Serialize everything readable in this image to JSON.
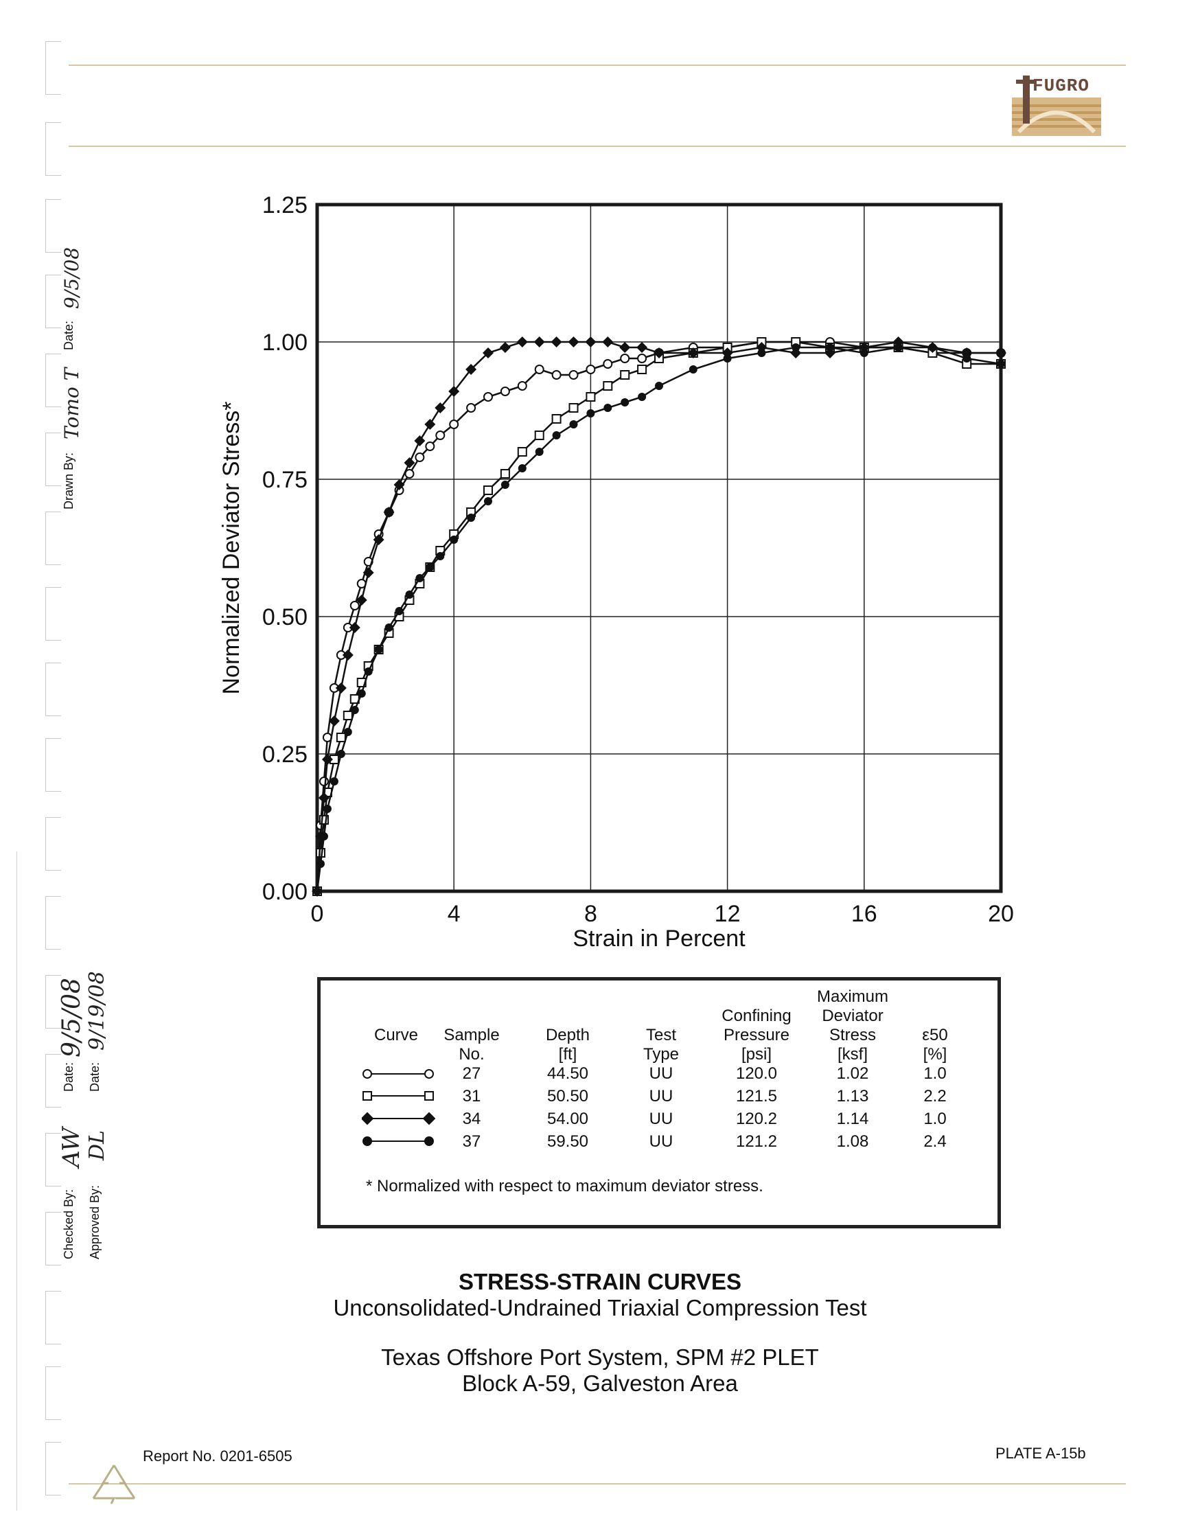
{
  "header": {
    "logo_text": "FUGRO"
  },
  "sidebar": {
    "drawn_by_label": "Drawn By:",
    "drawn_by_value": "Tomo T",
    "drawn_date_label": "Date:",
    "drawn_date_value": "9/5/08",
    "checked_by_label": "Checked By:",
    "checked_by_value": "AW",
    "checked_date_label": "Date:",
    "checked_date_value": "9/5/08",
    "approved_by_label": "Approved By:",
    "approved_by_value": "DL",
    "approved_date_label": "Date:",
    "approved_date_value": "9/19/08"
  },
  "chart_data": {
    "type": "line",
    "title": "",
    "xlabel": "Strain in Percent",
    "ylabel": "Normalized Deviator Stress*",
    "xlim": [
      0,
      20
    ],
    "ylim": [
      0,
      1.25
    ],
    "x_ticks": [
      "0",
      "4",
      "8",
      "12",
      "16",
      "20"
    ],
    "y_ticks": [
      "0.00",
      "0.25",
      "0.50",
      "0.75",
      "1.00",
      "1.25"
    ],
    "grid": true,
    "series": [
      {
        "name": "27",
        "marker": "open-circle",
        "x": [
          0,
          0.1,
          0.2,
          0.3,
          0.5,
          0.7,
          0.9,
          1.1,
          1.3,
          1.5,
          1.8,
          2.1,
          2.4,
          2.7,
          3.0,
          3.3,
          3.6,
          4.0,
          4.5,
          5.0,
          5.5,
          6.0,
          6.5,
          7.0,
          7.5,
          8.0,
          8.5,
          9.0,
          9.5,
          10.0,
          11.0,
          12.0,
          13.0,
          14.0,
          15.0,
          16.0,
          17.0,
          18.0,
          19.0,
          20.0
        ],
        "y": [
          0,
          0.12,
          0.2,
          0.28,
          0.37,
          0.43,
          0.48,
          0.52,
          0.56,
          0.6,
          0.65,
          0.69,
          0.73,
          0.76,
          0.79,
          0.81,
          0.83,
          0.85,
          0.88,
          0.9,
          0.91,
          0.92,
          0.95,
          0.94,
          0.94,
          0.95,
          0.96,
          0.97,
          0.97,
          0.98,
          0.99,
          0.99,
          1.0,
          1.0,
          1.0,
          0.99,
          0.99,
          0.98,
          0.98,
          0.98
        ]
      },
      {
        "name": "31",
        "marker": "open-square",
        "x": [
          0,
          0.1,
          0.2,
          0.3,
          0.5,
          0.7,
          0.9,
          1.1,
          1.3,
          1.5,
          1.8,
          2.1,
          2.4,
          2.7,
          3.0,
          3.3,
          3.6,
          4.0,
          4.5,
          5.0,
          5.5,
          6.0,
          6.5,
          7.0,
          7.5,
          8.0,
          8.5,
          9.0,
          9.5,
          10.0,
          11.0,
          12.0,
          13.0,
          14.0,
          15.0,
          16.0,
          17.0,
          18.0,
          19.0,
          20.0
        ],
        "y": [
          0,
          0.07,
          0.13,
          0.18,
          0.24,
          0.28,
          0.32,
          0.35,
          0.38,
          0.41,
          0.44,
          0.47,
          0.5,
          0.53,
          0.56,
          0.59,
          0.62,
          0.65,
          0.69,
          0.73,
          0.76,
          0.8,
          0.83,
          0.86,
          0.88,
          0.9,
          0.92,
          0.94,
          0.95,
          0.97,
          0.98,
          0.99,
          1.0,
          1.0,
          0.99,
          0.99,
          0.99,
          0.98,
          0.96,
          0.96
        ]
      },
      {
        "name": "34",
        "marker": "filled-diamond",
        "x": [
          0,
          0.1,
          0.2,
          0.3,
          0.5,
          0.7,
          0.9,
          1.1,
          1.3,
          1.5,
          1.8,
          2.1,
          2.4,
          2.7,
          3.0,
          3.3,
          3.6,
          4.0,
          4.5,
          5.0,
          5.5,
          6.0,
          6.5,
          7.0,
          7.5,
          8.0,
          8.5,
          9.0,
          9.5,
          10.0,
          11.0,
          12.0,
          13.0,
          14.0,
          15.0,
          16.0,
          17.0,
          18.0,
          19.0,
          20.0
        ],
        "y": [
          0,
          0.1,
          0.17,
          0.24,
          0.31,
          0.37,
          0.43,
          0.48,
          0.53,
          0.58,
          0.64,
          0.69,
          0.74,
          0.78,
          0.82,
          0.85,
          0.88,
          0.91,
          0.95,
          0.98,
          0.99,
          1.0,
          1.0,
          1.0,
          1.0,
          1.0,
          1.0,
          0.99,
          0.99,
          0.98,
          0.98,
          0.98,
          0.99,
          0.98,
          0.98,
          0.99,
          1.0,
          0.99,
          0.98,
          0.98
        ]
      },
      {
        "name": "37",
        "marker": "filled-circle",
        "x": [
          0,
          0.1,
          0.2,
          0.3,
          0.5,
          0.7,
          0.9,
          1.1,
          1.3,
          1.5,
          1.8,
          2.1,
          2.4,
          2.7,
          3.0,
          3.3,
          3.6,
          4.0,
          4.5,
          5.0,
          5.5,
          6.0,
          6.5,
          7.0,
          7.5,
          8.0,
          8.5,
          9.0,
          9.5,
          10.0,
          11.0,
          12.0,
          13.0,
          14.0,
          15.0,
          16.0,
          17.0,
          18.0,
          19.0,
          20.0
        ],
        "y": [
          0,
          0.05,
          0.1,
          0.15,
          0.2,
          0.25,
          0.29,
          0.33,
          0.36,
          0.4,
          0.44,
          0.48,
          0.51,
          0.54,
          0.57,
          0.59,
          0.61,
          0.64,
          0.68,
          0.71,
          0.74,
          0.77,
          0.8,
          0.83,
          0.85,
          0.87,
          0.88,
          0.89,
          0.9,
          0.92,
          0.95,
          0.97,
          0.98,
          0.99,
          0.99,
          0.98,
          0.99,
          0.99,
          0.97,
          0.96
        ]
      }
    ]
  },
  "legend_table": {
    "headers": {
      "curve": "Curve",
      "sample_l1": "Sample",
      "sample_l2": "No.",
      "depth_l1": "Depth",
      "depth_l2": "[ft]",
      "test_l1": "Test",
      "test_l2": "Type",
      "conf_l1": "Confining",
      "conf_l2": "Pressure",
      "conf_l3": "[psi]",
      "max_l1": "Maximum",
      "max_l2": "Deviator",
      "max_l3": "Stress",
      "max_l4": "[ksf]",
      "e50_l1": "ε50",
      "e50_l2": "[%]"
    },
    "rows": [
      {
        "sample": "27",
        "depth": "44.50",
        "test": "UU",
        "pressure": "120.0",
        "stress": "1.02",
        "e50": "1.0"
      },
      {
        "sample": "31",
        "depth": "50.50",
        "test": "UU",
        "pressure": "121.5",
        "stress": "1.13",
        "e50": "2.2"
      },
      {
        "sample": "34",
        "depth": "54.00",
        "test": "UU",
        "pressure": "120.2",
        "stress": "1.14",
        "e50": "1.0"
      },
      {
        "sample": "37",
        "depth": "59.50",
        "test": "UU",
        "pressure": "121.2",
        "stress": "1.08",
        "e50": "2.4"
      }
    ],
    "footnote": "* Normalized with respect to maximum deviator stress."
  },
  "titles": {
    "main": "STRESS-STRAIN CURVES",
    "sub": "Unconsolidated-Undrained Triaxial Compression Test",
    "project_l1": "Texas Offshore Port System, SPM #2 PLET",
    "project_l2": "Block A-59, Galveston Area"
  },
  "footer": {
    "report": "Report No. 0201-6505",
    "plate": "PLATE A-15b"
  },
  "colors": {
    "header_rule": "#d8c7a3",
    "logo": "#c8a46a",
    "ink": "#111111"
  }
}
